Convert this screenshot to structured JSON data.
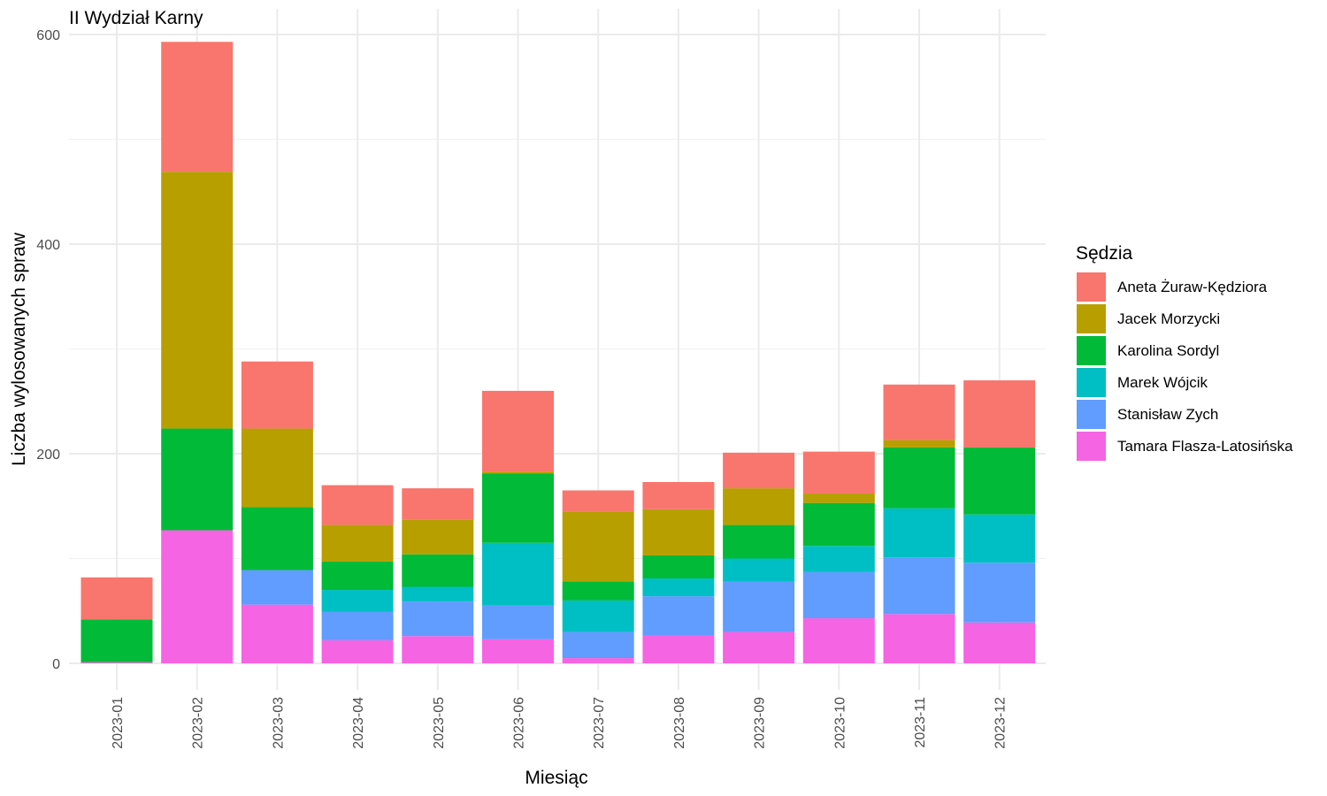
{
  "chart_data": {
    "type": "bar",
    "stacked": true,
    "title": "II Wydział Karny",
    "xlabel": "Miesiąc",
    "ylabel": "Liczba wylosowanych spraw",
    "ylim": [
      0,
      600
    ],
    "yticks": [
      0,
      200,
      400,
      600
    ],
    "grid": true,
    "legend_title": "Sędzia",
    "legend_position": "right",
    "categories": [
      "2023-01",
      "2023-02",
      "2023-03",
      "2023-04",
      "2023-05",
      "2023-06",
      "2023-07",
      "2023-08",
      "2023-09",
      "2023-10",
      "2023-11",
      "2023-12"
    ],
    "series": [
      {
        "name": "Tamara Flasza-Latosińska",
        "color": "#F564E3",
        "values": [
          1,
          127,
          56,
          22,
          26,
          23,
          5,
          27,
          30,
          43,
          47,
          39
        ]
      },
      {
        "name": "Stanisław Zych",
        "color": "#619CFF",
        "values": [
          0,
          0,
          33,
          27,
          33,
          32,
          25,
          37,
          48,
          44,
          54,
          57
        ]
      },
      {
        "name": "Marek Wójcik",
        "color": "#00BFC4",
        "values": [
          0,
          0,
          0,
          21,
          14,
          60,
          30,
          17,
          22,
          25,
          47,
          46
        ]
      },
      {
        "name": "Karolina Sordyl",
        "color": "#00BA38",
        "values": [
          41,
          97,
          60,
          27,
          31,
          66,
          18,
          22,
          32,
          41,
          58,
          64
        ]
      },
      {
        "name": "Jacek Morzycki",
        "color": "#B79F00",
        "values": [
          0,
          245,
          75,
          35,
          33,
          2,
          67,
          44,
          35,
          9,
          7,
          0
        ]
      },
      {
        "name": "Aneta Żuraw-Kędziora",
        "color": "#F8766D",
        "values": [
          40,
          124,
          64,
          38,
          30,
          77,
          20,
          26,
          34,
          40,
          53,
          64
        ]
      }
    ],
    "legend_order": [
      "Aneta Żuraw-Kędziora",
      "Jacek Morzycki",
      "Karolina Sordyl",
      "Marek Wójcik",
      "Stanisław Zych",
      "Tamara Flasza-Latosińska"
    ]
  }
}
